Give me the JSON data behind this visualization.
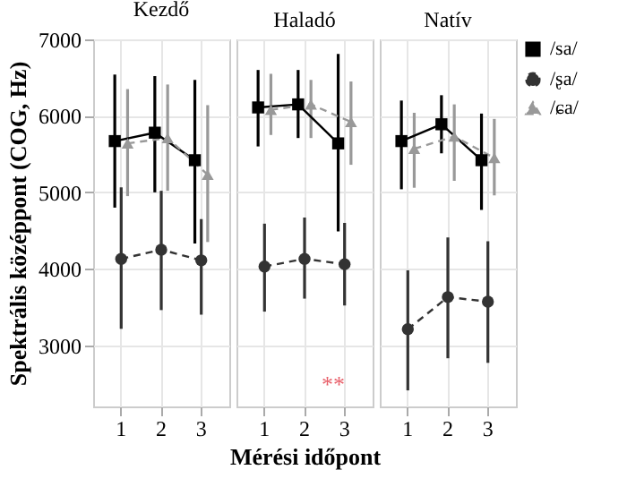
{
  "chart_data": [
    {
      "type": "line",
      "title": "Kezdő",
      "ylabel": "Spektrális középpont (COG, Hz)",
      "categories": [
        "1",
        "2",
        "3"
      ],
      "ylim": [
        2200,
        7000
      ],
      "yticks": [
        3000,
        4000,
        5000,
        6000,
        7000
      ],
      "grid": true,
      "legend": false,
      "series": [
        {
          "color": "#000000",
          "marker": "square",
          "line_style": "solid",
          "values": [
            5670,
            5780,
            5420
          ],
          "errors": [
            [
              4800,
              6540
            ],
            [
              5000,
              6520
            ],
            [
              4330,
              6470
            ]
          ]
        },
        {
          "color": "#333333",
          "marker": "circle",
          "line_style": "dashed",
          "values": [
            4130,
            4250,
            4110
          ],
          "errors": [
            [
              3215,
              5065
            ],
            [
              3460,
              5020
            ],
            [
              3400,
              4650
            ]
          ]
        },
        {
          "color": "#999999",
          "marker": "triangle",
          "line_style": "dashed",
          "values": [
            5640,
            5710,
            5230
          ],
          "errors": [
            [
              4950,
              6350
            ],
            [
              5020,
              6410
            ],
            [
              4350,
              6140
            ]
          ]
        }
      ]
    },
    {
      "type": "line",
      "title": "Haladó",
      "xlabel": "Mérési időpont",
      "categories": [
        "1",
        "2",
        "3"
      ],
      "ylim": [
        2200,
        7000
      ],
      "yticks": [
        3000,
        4000,
        5000,
        6000,
        7000
      ],
      "grid": true,
      "legend": false,
      "tick_labels": "x",
      "annotations": [
        "**"
      ],
      "series": [
        {
          "color": "#000000",
          "marker": "square",
          "line_style": "solid",
          "values": [
            6110,
            6150,
            5640
          ],
          "errors": [
            [
              5600,
              6600
            ],
            [
              5710,
              6600
            ],
            [
              4490,
              6810
            ]
          ]
        },
        {
          "color": "#333333",
          "marker": "circle",
          "line_style": "dashed",
          "values": [
            4030,
            4130,
            4060
          ],
          "errors": [
            [
              3440,
              4590
            ],
            [
              3610,
              4670
            ],
            [
              3520,
              4600
            ]
          ]
        },
        {
          "color": "#999999",
          "marker": "triangle",
          "line_style": "dashed",
          "values": [
            6080,
            6150,
            5920
          ],
          "errors": [
            [
              5750,
              6550
            ],
            [
              5710,
              6470
            ],
            [
              5360,
              6450
            ]
          ]
        }
      ]
    },
    {
      "type": "line",
      "title": "Natív",
      "categories": [
        "1",
        "2",
        "3"
      ],
      "ylim": [
        2200,
        7000
      ],
      "yticks": [
        3000,
        4000,
        5000,
        6000,
        7000
      ],
      "grid": true,
      "legend": "right",
      "tick_labels": "x",
      "series": [
        {
          "name": "/sa/",
          "color": "#000000",
          "marker": "square",
          "line_style": "solid",
          "values": [
            5670,
            5890,
            5420
          ],
          "errors": [
            [
              5040,
              6200
            ],
            [
              5510,
              6270
            ],
            [
              4770,
              6030
            ]
          ]
        },
        {
          "name": "/ʂa/",
          "color": "#333333",
          "marker": "circle",
          "line_style": "dashed",
          "values": [
            3210,
            3630,
            3570
          ],
          "errors": [
            [
              2410,
              3980
            ],
            [
              2830,
              4410
            ],
            [
              2770,
              4360
            ]
          ]
        },
        {
          "name": "/ɕa/",
          "color": "#999999",
          "marker": "triangle",
          "line_style": "dashed",
          "values": [
            5570,
            5730,
            5450
          ],
          "errors": [
            [
              5060,
              6040
            ],
            [
              5150,
              6150
            ],
            [
              4960,
              5960
            ]
          ]
        }
      ]
    }
  ]
}
